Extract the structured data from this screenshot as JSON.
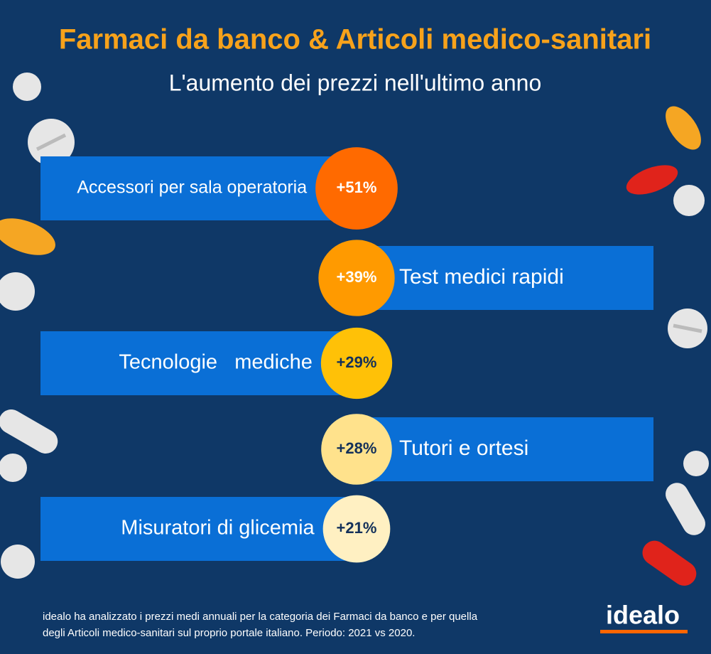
{
  "chart_data": {
    "type": "bar",
    "title": "Farmaci da banco & Articoli medico-sanitari",
    "subtitle": "L'aumento dei prezzi nell'ultimo anno",
    "categories": [
      "Accessori per sala operatoria",
      "Test medici rapidi",
      "Tecnologie   mediche",
      "Tutori e ortesi",
      "Misuratori di glicemia"
    ],
    "values": [
      51,
      39,
      29,
      28,
      21
    ],
    "value_labels": [
      "+51%",
      "+39%",
      "+29%",
      "+28%",
      "+21%"
    ],
    "colors": [
      "#ff6a00",
      "#ff9a00",
      "#ffc107",
      "#ffe28c",
      "#fff0c2"
    ],
    "bar_color": "#0a6fd6",
    "note": [
      "idealo ha analizzato i prezzi medi annuali per la categoria dei Farmaci da banco e per quella",
      "degli Articoli medico-sanitari sul proprio portale italiano. Periodo: 2021 vs 2020."
    ],
    "logo": "idealo"
  }
}
